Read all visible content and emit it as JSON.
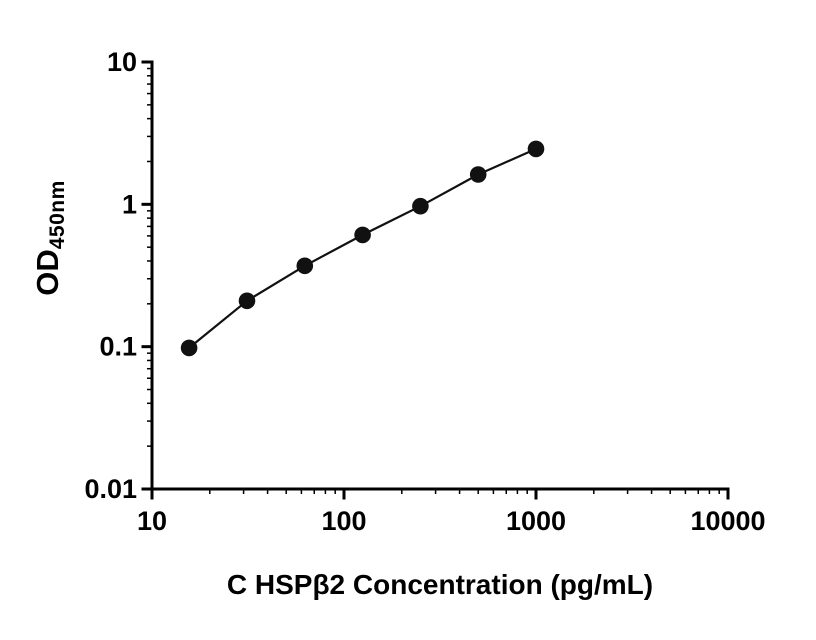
{
  "figure": {
    "background": "#ffffff",
    "text_color": "#000000"
  },
  "chart_data": {
    "type": "scatter",
    "title": "",
    "xlabel": "C HSPβ2 Concentration (pg/mL)",
    "ylabel_main": "OD",
    "ylabel_sub": "450nm",
    "x_scale": "log",
    "y_scale": "log",
    "xlim": [
      10,
      10000
    ],
    "ylim": [
      0.01,
      10
    ],
    "x_ticks": [
      10,
      100,
      1000,
      10000
    ],
    "x_tick_labels": [
      "10",
      "100",
      "1000",
      "10000"
    ],
    "y_ticks": [
      10,
      1,
      0.1,
      0.01
    ],
    "y_tick_labels": [
      "10",
      "1",
      "0.1",
      "0.01"
    ],
    "grid": false,
    "legend": null,
    "line_color": "#111111",
    "marker_color": "#111111",
    "points": [
      {
        "x": 15.6,
        "y": 0.098
      },
      {
        "x": 31.25,
        "y": 0.21
      },
      {
        "x": 62.5,
        "y": 0.37
      },
      {
        "x": 125,
        "y": 0.61
      },
      {
        "x": 250,
        "y": 0.97
      },
      {
        "x": 500,
        "y": 1.62
      },
      {
        "x": 1000,
        "y": 2.45
      }
    ]
  }
}
